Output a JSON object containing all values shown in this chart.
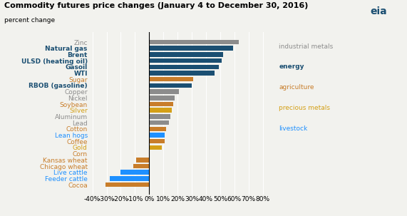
{
  "title": "Commodity futures price changes (January 4 to December 30, 2016)",
  "subtitle": "percent change",
  "categories": [
    "Zinc",
    "Natural gas",
    "Brent",
    "ULSD (heating oil)",
    "Gasoil",
    "WTI",
    "Sugar",
    "RBOB (gasoline)",
    "Copper",
    "Nickel",
    "Soybean",
    "Silver",
    "Aluminum",
    "Lead",
    "Cotton",
    "Lean hogs",
    "Coffee",
    "Gold",
    "Corn",
    "Kansas wheat",
    "Chicago wheat",
    "Live cattle",
    "Feeder cattle",
    "Cocoa"
  ],
  "values": [
    63,
    59,
    52,
    51,
    49,
    46,
    31,
    30,
    21,
    18,
    17,
    16,
    15,
    14,
    12,
    11,
    11,
    9,
    0,
    -9,
    -11,
    -20,
    -28,
    -31
  ],
  "bar_colors": [
    "#8c8c8c",
    "#1b4f72",
    "#1b4f72",
    "#1b4f72",
    "#1b4f72",
    "#1b4f72",
    "#c87d2a",
    "#1b4f72",
    "#8c8c8c",
    "#8c8c8c",
    "#c87d2a",
    "#d4a017",
    "#8c8c8c",
    "#8c8c8c",
    "#c87d2a",
    "#1e90ff",
    "#c87d2a",
    "#d4a017",
    "#c87d2a",
    "#c87d2a",
    "#c87d2a",
    "#1e90ff",
    "#1e90ff",
    "#c87d2a"
  ],
  "label_colors": [
    "#8c8c8c",
    "#1b4f72",
    "#1b4f72",
    "#1b4f72",
    "#1b4f72",
    "#1b4f72",
    "#c87d2a",
    "#1b4f72",
    "#8c8c8c",
    "#8c8c8c",
    "#c87d2a",
    "#d4a017",
    "#8c8c8c",
    "#8c8c8c",
    "#c87d2a",
    "#1e90ff",
    "#c87d2a",
    "#d4a017",
    "#c87d2a",
    "#c87d2a",
    "#c87d2a",
    "#1e90ff",
    "#1e90ff",
    "#c87d2a"
  ],
  "energy_bold": [
    "Natural gas",
    "Brent",
    "ULSD (heating oil)",
    "Gasoil",
    "WTI",
    "RBOB (gasoline)"
  ],
  "xlim": [
    -42,
    87
  ],
  "xticks": [
    -40,
    -30,
    -20,
    -10,
    0,
    10,
    20,
    30,
    40,
    50,
    60,
    70,
    80
  ],
  "xtick_labels": [
    "-40%",
    "-30%",
    "-20%",
    "-10%",
    "0%",
    "10%",
    "20%",
    "30%",
    "40%",
    "50%",
    "60%",
    "70%",
    "80%"
  ],
  "legend_items": [
    {
      "label": "industrial metals",
      "color": "#8c8c8c",
      "bold": false
    },
    {
      "label": "energy",
      "color": "#1b4f72",
      "bold": true
    },
    {
      "label": "agriculture",
      "color": "#c87d2a",
      "bold": false
    },
    {
      "label": "precious metals",
      "color": "#d4a017",
      "bold": false
    },
    {
      "label": "livestock",
      "color": "#1e90ff",
      "bold": false
    }
  ],
  "background_color": "#f2f2ee",
  "bar_height": 0.75,
  "title_fontsize": 8,
  "label_fontsize": 6.5,
  "tick_fontsize": 6.5,
  "legend_fontsize": 6.5
}
